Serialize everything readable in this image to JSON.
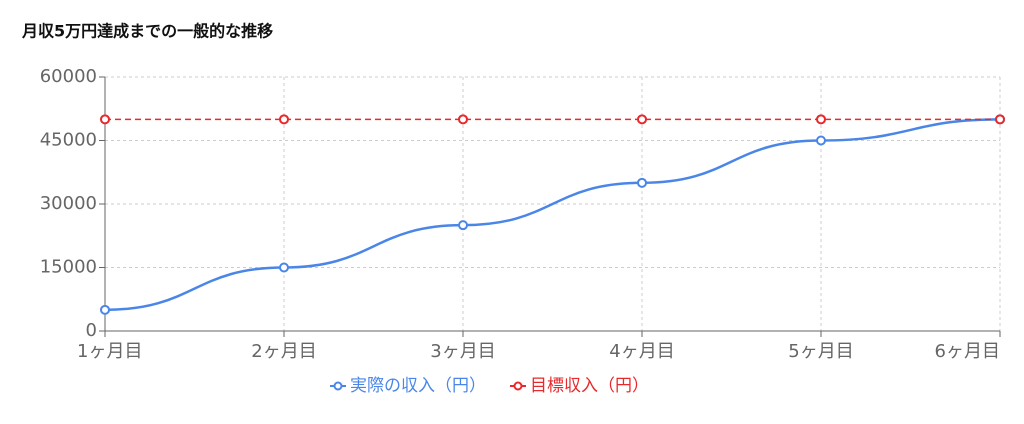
{
  "chart_data": {
    "type": "line",
    "title": "月収5万円達成までの一般的な推移",
    "categories": [
      "1ヶ月目",
      "2ヶ月目",
      "3ヶ月目",
      "4ヶ月目",
      "5ヶ月目",
      "6ヶ月目"
    ],
    "series": [
      {
        "name": "実際の収入（円）",
        "color": "#4a86e8",
        "dashed": false,
        "values": [
          5000,
          15000,
          25000,
          35000,
          45000,
          50000
        ]
      },
      {
        "name": "目標収入（円）",
        "color": "#e8282b",
        "dashed": true,
        "values": [
          50000,
          50000,
          50000,
          50000,
          50000,
          50000
        ]
      }
    ],
    "ylim": [
      0,
      60000
    ],
    "yticks": [
      0,
      15000,
      30000,
      45000,
      60000
    ],
    "grid": true
  }
}
